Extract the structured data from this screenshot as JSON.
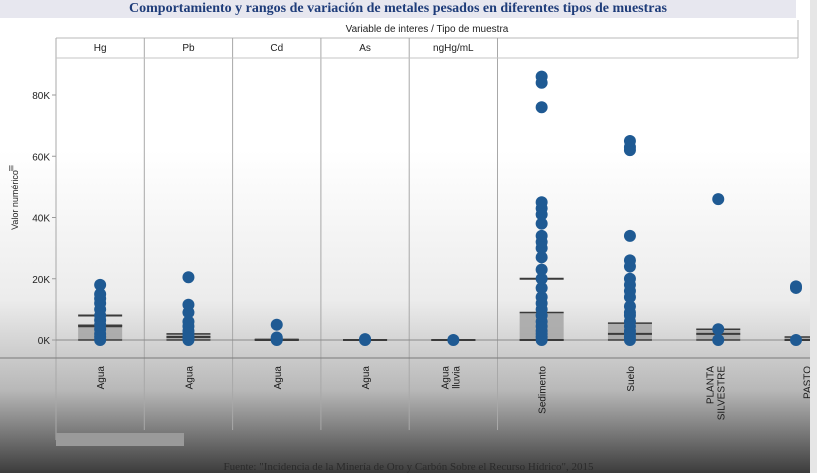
{
  "chart_data": {
    "type": "scatter",
    "title": "Comportamiento y rangos de variación de metales pesados en diferentes tipos de muestras",
    "header_label": "Variable de interes / Tipo de muestra",
    "ylabel": "Valor numérico",
    "ylim": [
      -6000,
      92000
    ],
    "yticks": [
      0,
      20000,
      40000,
      60000,
      80000
    ],
    "ytick_labels": [
      "0K",
      "20K",
      "40K",
      "60K",
      "80K"
    ],
    "grid": false,
    "colors": {
      "points": "#1f5a93",
      "box": "#9e9e9e",
      "whisker": "#3a3a3a"
    },
    "variables": [
      {
        "name": "Hg",
        "sample_types": [
          {
            "label": "Agua",
            "points": [
              0,
              1000,
              2000,
              3500,
              5000,
              6500,
              8000,
              10000,
              12000,
              13500,
              15000,
              18000
            ],
            "box": {
              "q1": 0,
              "median": 4500,
              "q3": 4800,
              "whisker_high": 8000
            }
          }
        ]
      },
      {
        "name": "Pb",
        "sample_types": [
          {
            "label": "Agua",
            "points": [
              0,
              500,
              1000,
              2000,
              3000,
              4500,
              6000,
              9000,
              11500,
              20500
            ],
            "box": {
              "q1": 0,
              "median": 1000,
              "q3": 2000,
              "whisker_high": 2000
            }
          }
        ]
      },
      {
        "name": "Cd",
        "sample_types": [
          {
            "label": "Agua",
            "points": [
              0,
              300,
              800,
              5000
            ],
            "box": {
              "q1": 0,
              "median": 0,
              "q3": 200,
              "whisker_high": 200
            }
          }
        ]
      },
      {
        "name": "As",
        "sample_types": [
          {
            "label": "Agua",
            "points": [
              0,
              300
            ],
            "box": {
              "q1": 0,
              "median": 0,
              "q3": 100,
              "whisker_high": 100
            }
          }
        ]
      },
      {
        "name": "ngHg/mL",
        "sample_types": [
          {
            "label": "Agua lluvia",
            "points": [
              0
            ],
            "box": {
              "q1": 0,
              "median": 0,
              "q3": 0,
              "whisker_high": 0
            }
          }
        ]
      },
      {
        "name": "",
        "sample_types": [
          {
            "label": "Sedimento",
            "points": [
              0,
              1000,
              2000,
              3000,
              4500,
              6000,
              8000,
              10000,
              12000,
              14000,
              17000,
              20000,
              23000,
              27000,
              30000,
              32000,
              34000,
              38000,
              41000,
              43000,
              45000,
              76000,
              84000,
              86000
            ],
            "box": {
              "q1": 0,
              "median": 0,
              "q3": 9000,
              "whisker_high": 20000
            }
          },
          {
            "label": "Suelo",
            "points": [
              0,
              1000,
              2000,
              3000,
              4500,
              6000,
              8000,
              9000,
              11000,
              14000,
              16000,
              18000,
              20000,
              24000,
              26000,
              34000,
              62000,
              63000,
              65000
            ],
            "box": {
              "q1": 0,
              "median": 2000,
              "q3": 5500,
              "whisker_high": 5500
            }
          },
          {
            "label": "PLANTA SILVESTRE",
            "points": [
              0,
              3500,
              46000
            ],
            "box": {
              "q1": 0,
              "median": 2000,
              "q3": 3500,
              "whisker_high": 3500
            }
          },
          {
            "label": "PASTO",
            "points": [
              0,
              17000,
              17500
            ],
            "box": {
              "q1": 0,
              "median": 0,
              "q3": 1000,
              "whisker_high": 1000
            }
          }
        ]
      }
    ]
  },
  "footer": {
    "source": "Fuente: \"Incidencia de la Minería de Oro y Carbón Sobre el Recurso Hídrico\", 2015"
  }
}
